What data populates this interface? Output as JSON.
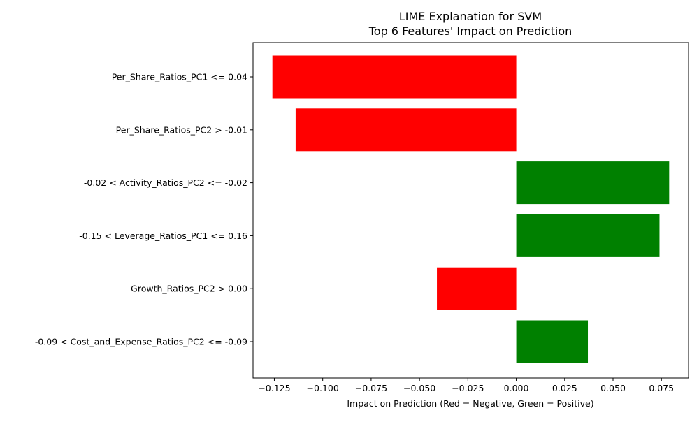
{
  "chart_data": {
    "type": "bar",
    "orientation": "horizontal",
    "title_line1": "LIME Explanation for SVM",
    "title_line2": "Top 6 Features' Impact on Prediction",
    "xlabel": "Impact on Prediction (Red = Negative, Green = Positive)",
    "ylabel": "",
    "categories": [
      "Per_Share_Ratios_PC1 <= 0.04",
      "Per_Share_Ratios_PC2 > -0.01",
      "-0.02 < Activity_Ratios_PC2 <= -0.02",
      "-0.15 < Leverage_Ratios_PC1 <= 0.16",
      "Growth_Ratios_PC2 > 0.00",
      "-0.09 < Cost_and_Expense_Ratios_PC2 <= -0.09"
    ],
    "values": [
      -0.126,
      -0.114,
      0.079,
      0.074,
      -0.041,
      0.037
    ],
    "xlim": [
      -0.136,
      0.089
    ],
    "xticks": [
      -0.125,
      -0.1,
      -0.075,
      -0.05,
      -0.025,
      0.0,
      0.025,
      0.05,
      0.075
    ],
    "xtick_labels": [
      "−0.125",
      "−0.100",
      "−0.075",
      "−0.050",
      "−0.025",
      "0.000",
      "0.025",
      "0.050",
      "0.075"
    ],
    "colors": {
      "negative": "#ff0000",
      "positive": "#008000"
    },
    "grid": false,
    "legend": "none"
  }
}
